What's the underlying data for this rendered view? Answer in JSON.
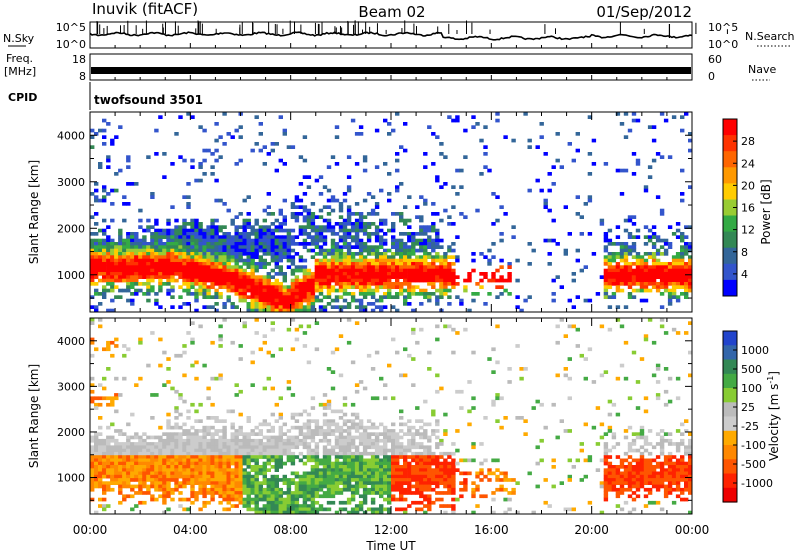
{
  "header": {
    "station": "Inuvik (fitACF)",
    "beam": "Beam 02",
    "date": "01/Sep/2012"
  },
  "panels": {
    "noise": {
      "left_label": "N.Sky",
      "left_ticks": [
        "10^5",
        "10^0"
      ],
      "right_label": "N.Search",
      "right_ticks": [
        "10^5",
        "10^0"
      ]
    },
    "freq": {
      "left_label_1": "Freq.",
      "left_label_2": "[MHz]",
      "left_ticks": [
        "18",
        "8"
      ],
      "right_label": "Nave",
      "right_ticks": [
        "60",
        "0"
      ]
    },
    "cpid": {
      "label": "CPID",
      "text": "twofsound 3501"
    }
  },
  "colorbars": {
    "power": {
      "title": "Power [dB]",
      "ticks": [
        "28",
        "24",
        "20",
        "16",
        "12",
        "8",
        "4"
      ],
      "colors": [
        "#ff0000",
        "#ff3300",
        "#ff6600",
        "#ff9900",
        "#ffcc00",
        "#99cc33",
        "#33aa44",
        "#338855",
        "#336699",
        "#3355cc",
        "#0000ff"
      ]
    },
    "velocity": {
      "title": "Velocity [m s",
      "title_sup": "-1",
      "title_end": "]",
      "ticks": [
        "1000",
        "500",
        "100",
        "25",
        "-25",
        "-100",
        "-500",
        "-1000"
      ],
      "colors": [
        "#2244cc",
        "#3366aa",
        "#338855",
        "#44aa44",
        "#88cc33",
        "#bbbbbb",
        "#cccccc",
        "#ffaa00",
        "#ff8800",
        "#ff5500",
        "#ff2200",
        "#ee0000"
      ]
    }
  },
  "chart_data": [
    {
      "type": "heatmap",
      "name_text": "Power",
      "ylabel": "Slant Range [km]",
      "yticks": [
        1000,
        2000,
        3000,
        4000
      ],
      "ylim": [
        200,
        4500
      ],
      "xlim": [
        0,
        24
      ],
      "xticks": [
        "00:00",
        "04:00",
        "08:00",
        "12:00",
        "16:00",
        "20:00",
        "00:00"
      ],
      "xlabel": "Time UT"
    },
    {
      "type": "heatmap",
      "name_text": "Velocity",
      "ylabel": "Slant Range [km]",
      "yticks": [
        1000,
        2000,
        3000,
        4000
      ],
      "ylim": [
        200,
        4500
      ],
      "xlim": [
        0,
        24
      ],
      "xticks": [
        "00:00",
        "04:00",
        "08:00",
        "12:00",
        "16:00",
        "20:00",
        "00:00"
      ],
      "xlabel": "Time UT"
    }
  ]
}
